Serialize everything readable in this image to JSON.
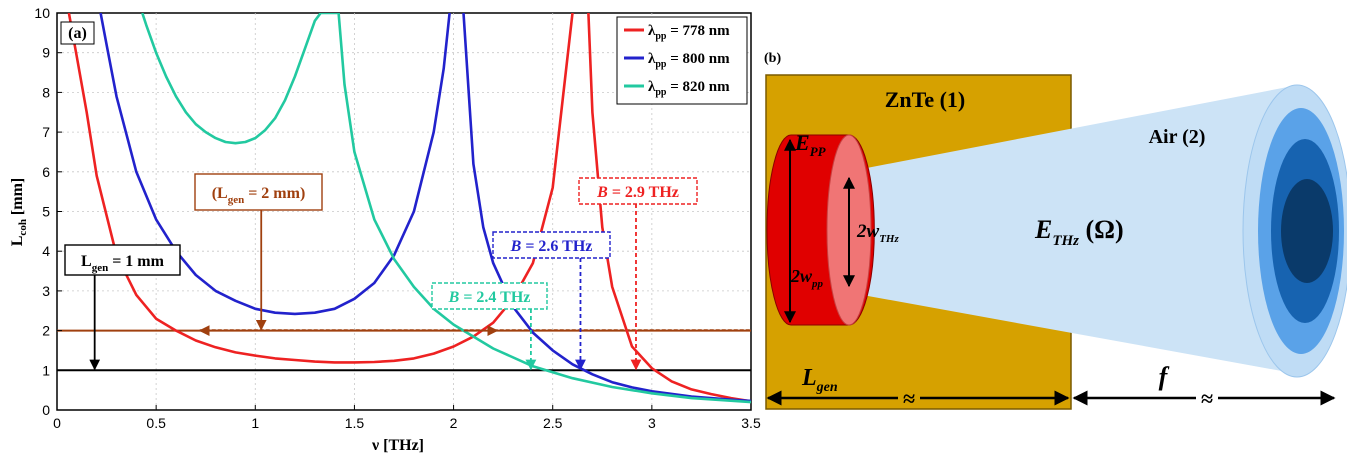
{
  "chart_data": {
    "type": "line",
    "panel_label": "(a)",
    "xlabel": "ν [THz]",
    "ylabel": "L",
    "ylabel_sub": "coh",
    "ylabel_unit": "[mm]",
    "xlim": [
      0,
      3.5
    ],
    "ylim": [
      0,
      10
    ],
    "xticks": [
      0,
      0.5,
      1,
      1.5,
      2,
      2.5,
      3,
      3.5
    ],
    "xtick_labels": [
      "0",
      "0.5",
      "1",
      "1.5",
      "2",
      "2.5",
      "3",
      "3.5"
    ],
    "yticks": [
      0,
      1,
      2,
      3,
      4,
      5,
      6,
      7,
      8,
      9,
      10
    ],
    "ytick_labels": [
      "0",
      "1",
      "2",
      "3",
      "4",
      "5",
      "6",
      "7",
      "8",
      "9",
      "10"
    ],
    "grid": true,
    "legend_position": "top-right",
    "legend": [
      {
        "symbol": "λ",
        "sub": "pp",
        "text": " = 778 nm",
        "color": "#ee2222"
      },
      {
        "symbol": "λ",
        "sub": "pp",
        "text": " = 800 nm",
        "color": "#2222cc"
      },
      {
        "symbol": "λ",
        "sub": "pp",
        "text": " = 820 nm",
        "color": "#22c9a0"
      }
    ],
    "series": [
      {
        "name": "λpp = 778 nm",
        "color": "#ee2222",
        "x": [
          0.06,
          0.1,
          0.15,
          0.2,
          0.3,
          0.4,
          0.5,
          0.6,
          0.7,
          0.8,
          0.9,
          1.0,
          1.1,
          1.2,
          1.3,
          1.4,
          1.5,
          1.6,
          1.7,
          1.8,
          1.9,
          2.0,
          2.1,
          2.2,
          2.3,
          2.4,
          2.5,
          2.55,
          2.6,
          2.62,
          2.68,
          2.7,
          2.75,
          2.8,
          2.9,
          3.0,
          3.1,
          3.2,
          3.3,
          3.4,
          3.5
        ],
        "y": [
          10,
          8.9,
          7.5,
          5.9,
          3.9,
          2.9,
          2.3,
          2.0,
          1.75,
          1.58,
          1.45,
          1.37,
          1.3,
          1.26,
          1.22,
          1.2,
          1.2,
          1.21,
          1.24,
          1.3,
          1.42,
          1.6,
          1.85,
          2.2,
          2.8,
          3.7,
          5.6,
          7.8,
          10,
          null,
          10,
          7.5,
          4.6,
          3.1,
          1.6,
          1.05,
          0.72,
          0.52,
          0.4,
          0.3,
          0.22
        ]
      },
      {
        "name": "λpp = 800 nm",
        "color": "#2222cc",
        "x": [
          0.22,
          0.25,
          0.3,
          0.4,
          0.5,
          0.6,
          0.7,
          0.8,
          0.9,
          1.0,
          1.1,
          1.2,
          1.3,
          1.4,
          1.5,
          1.6,
          1.7,
          1.8,
          1.9,
          1.95,
          1.98,
          2.03,
          2.05,
          2.1,
          2.15,
          2.2,
          2.3,
          2.4,
          2.5,
          2.6,
          2.7,
          2.8,
          2.9,
          3.0,
          3.2,
          3.4,
          3.5
        ],
        "y": [
          10,
          9.2,
          7.9,
          6.0,
          4.8,
          4.0,
          3.4,
          3.0,
          2.75,
          2.55,
          2.45,
          2.42,
          2.45,
          2.55,
          2.8,
          3.2,
          3.9,
          5.0,
          7.0,
          8.6,
          10,
          null,
          10,
          6.2,
          4.6,
          3.7,
          2.6,
          1.95,
          1.5,
          1.15,
          0.9,
          0.7,
          0.57,
          0.47,
          0.34,
          0.26,
          0.23
        ]
      },
      {
        "name": "λpp = 820 nm",
        "color": "#22c9a0",
        "x": [
          0.43,
          0.45,
          0.5,
          0.55,
          0.6,
          0.65,
          0.7,
          0.75,
          0.8,
          0.85,
          0.9,
          0.95,
          1.0,
          1.05,
          1.1,
          1.15,
          1.2,
          1.25,
          1.3,
          1.33,
          1.42,
          1.45,
          1.5,
          1.6,
          1.7,
          1.8,
          1.9,
          2.0,
          2.2,
          2.4,
          2.6,
          2.8,
          3.0,
          3.2,
          3.5
        ],
        "y": [
          10,
          9.7,
          9.0,
          8.4,
          7.9,
          7.5,
          7.2,
          7.0,
          6.85,
          6.75,
          6.72,
          6.75,
          6.85,
          7.05,
          7.35,
          7.8,
          8.4,
          9.1,
          9.8,
          10,
          10,
          8.2,
          6.5,
          4.8,
          3.8,
          3.1,
          2.55,
          2.15,
          1.55,
          1.1,
          0.8,
          0.58,
          0.42,
          0.3,
          0.2
        ]
      }
    ],
    "hlines": [
      {
        "y": 1,
        "color": "#000000"
      },
      {
        "y": 2,
        "color": "#a0400f"
      }
    ],
    "dashed_arrow": {
      "from": 0.72,
      "to": 2.22,
      "y": 2,
      "color": "#a0400f"
    },
    "boxes": [
      {
        "id": "l1",
        "main": "L",
        "sub": "gen",
        "text": " = 1 mm",
        "color": "#000000",
        "arrow_x": 0.19,
        "arrow_y": 1
      },
      {
        "id": "l2",
        "main": "(L",
        "sub": "gen",
        "text": " = 2 mm)",
        "color": "#a0400f",
        "arrow_x": 1.03,
        "arrow_y": 2
      },
      {
        "id": "b24",
        "main": "B",
        "text": " = 2.4 THz",
        "color": "#22c9a0",
        "arrow_x": 2.39,
        "arrow_y": 1
      },
      {
        "id": "b26",
        "main": "B",
        "text": " = 2.6 THz",
        "color": "#2222cc",
        "arrow_x": 2.64,
        "arrow_y": 1
      },
      {
        "id": "b29",
        "main": "B",
        "text": " = 2.9 THz",
        "color": "#ee2222",
        "arrow_x": 2.92,
        "arrow_y": 1
      }
    ]
  },
  "diagram": {
    "panel_label": "(b)",
    "crystal_label": "ZnTe (1)",
    "air_label": "Air (2)",
    "epp": {
      "main": "E",
      "sub": "PP"
    },
    "w_pp": {
      "main": "2w",
      "sub": "pp"
    },
    "w_thz": {
      "main": "2w",
      "sub": "THz"
    },
    "ethz": {
      "main": "E",
      "sub": "THz",
      "arg": " (Ω)"
    },
    "lgen": {
      "main": "L",
      "sub": "gen"
    },
    "focal": "f",
    "break_mark": "≈",
    "colors": {
      "crystal": "#d6a100",
      "beam": "#cce3f6",
      "pump": "#e00000",
      "pump_face": "#f07575",
      "cone_dark": "#0a3a6a"
    }
  }
}
